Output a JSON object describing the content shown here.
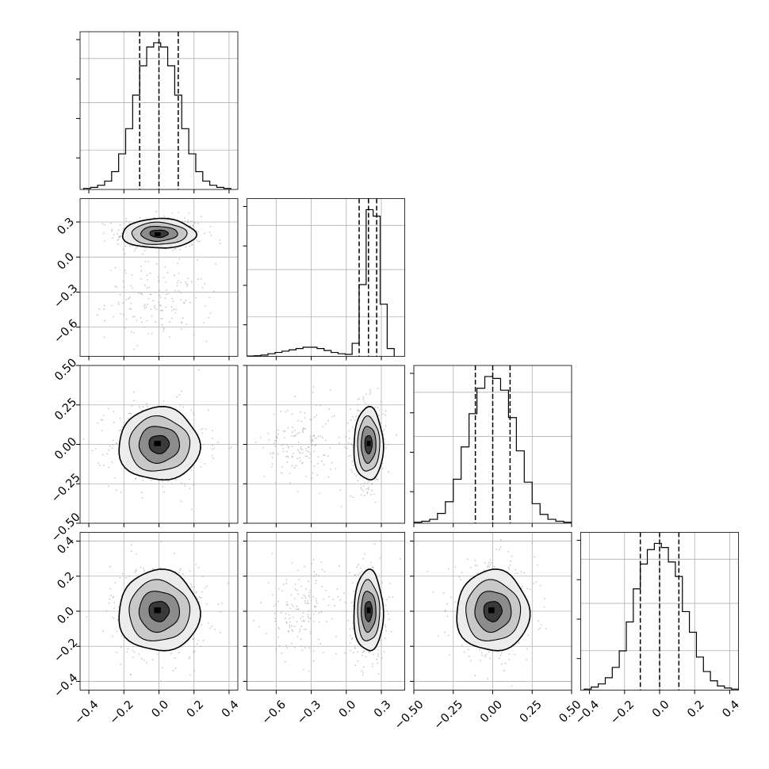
{
  "chart_data": {
    "type": "corner",
    "n_params": 4,
    "axis_ranges": [
      [
        -0.45,
        0.45
      ],
      [
        -0.85,
        0.5
      ],
      [
        -0.5,
        0.5
      ],
      [
        -0.45,
        0.45
      ]
    ],
    "ticks": [
      [
        "−0.4",
        "−0.2",
        "0.0",
        "0.2",
        "0.4"
      ],
      [
        "−0.6",
        "−0.3",
        "0.0",
        "0.3"
      ],
      [
        "−0.50",
        "−0.25",
        "0.00",
        "0.25",
        "0.50"
      ],
      [
        "−0.4",
        "−0.2",
        "0.0",
        "0.2",
        "0.4"
      ]
    ],
    "tick_values": [
      [
        -0.4,
        -0.2,
        0.0,
        0.2,
        0.4
      ],
      [
        -0.6,
        -0.3,
        0.0,
        0.3
      ],
      [
        -0.5,
        -0.25,
        0.0,
        0.25,
        0.5
      ],
      [
        -0.4,
        -0.2,
        0.0,
        0.2,
        0.4
      ]
    ],
    "histograms": [
      {
        "param": 0,
        "bin_edges": [
          -0.43,
          -0.39,
          -0.35,
          -0.31,
          -0.27,
          -0.23,
          -0.19,
          -0.15,
          -0.11,
          -0.07,
          -0.03,
          0.01,
          0.05,
          0.09,
          0.13,
          0.17,
          0.21,
          0.25,
          0.29,
          0.33,
          0.37,
          0.41
        ],
        "counts": [
          1,
          2,
          4,
          8,
          17,
          34,
          58,
          90,
          118,
          136,
          140,
          136,
          118,
          90,
          58,
          34,
          17,
          8,
          4,
          2,
          1
        ],
        "quantiles": [
          -0.11,
          0.0,
          0.11
        ]
      },
      {
        "param": 1,
        "bin_edges": [
          -0.85,
          -0.79,
          -0.73,
          -0.67,
          -0.61,
          -0.55,
          -0.49,
          -0.43,
          -0.37,
          -0.31,
          -0.25,
          -0.19,
          -0.13,
          -0.07,
          -0.01,
          0.05,
          0.11,
          0.17,
          0.23,
          0.29,
          0.35,
          0.41
        ],
        "counts": [
          0.5,
          1,
          2,
          4,
          6,
          8,
          10,
          12,
          14,
          14,
          12,
          9,
          6,
          4,
          3,
          20,
          110,
          225,
          215,
          80,
          12
        ],
        "quantiles": [
          0.11,
          0.19,
          0.26
        ]
      },
      {
        "param": 2,
        "bin_edges": [
          -0.5,
          -0.45,
          -0.4,
          -0.35,
          -0.3,
          -0.25,
          -0.2,
          -0.15,
          -0.1,
          -0.05,
          0.0,
          0.05,
          0.1,
          0.15,
          0.2,
          0.25,
          0.3,
          0.35,
          0.4,
          0.45,
          0.5
        ],
        "counts": [
          1,
          2,
          4,
          10,
          22,
          45,
          78,
          112,
          138,
          150,
          148,
          136,
          108,
          74,
          42,
          20,
          9,
          4,
          2,
          1
        ],
        "quantiles": [
          -0.11,
          0.0,
          0.11
        ]
      },
      {
        "param": 3,
        "bin_edges": [
          -0.43,
          -0.39,
          -0.35,
          -0.31,
          -0.27,
          -0.23,
          -0.19,
          -0.15,
          -0.11,
          -0.07,
          -0.03,
          0.01,
          0.05,
          0.09,
          0.13,
          0.17,
          0.21,
          0.25,
          0.29,
          0.33,
          0.37,
          0.41,
          0.45
        ],
        "counts": [
          1,
          3,
          6,
          12,
          22,
          38,
          66,
          98,
          122,
          136,
          142,
          138,
          124,
          110,
          76,
          56,
          32,
          18,
          9,
          4,
          2,
          1
        ],
        "quantiles": [
          -0.11,
          0.0,
          0.11
        ]
      }
    ],
    "joint_2d": [
      {
        "x_param": 0,
        "y_param": 1,
        "x_center": 0.0,
        "x_sigma": 0.1,
        "y_center": 0.2,
        "y_sigma": 0.06,
        "mode_2": {
          "x_center": 0.0,
          "x_sigma": 0.12,
          "y_center": -0.38,
          "y_sigma": 0.13
        }
      },
      {
        "x_param": 0,
        "y_param": 2,
        "x_center": 0.0,
        "x_sigma": 0.11,
        "y_center": 0.0,
        "y_sigma": 0.11
      },
      {
        "x_param": 1,
        "y_param": 2,
        "x_center": 0.19,
        "x_sigma": 0.06,
        "y_center": 0.0,
        "y_sigma": 0.11,
        "mode_2": {
          "x_center": -0.38,
          "x_sigma": 0.13,
          "y_center": 0.0,
          "y_sigma": 0.11
        }
      },
      {
        "x_param": 0,
        "y_param": 3,
        "x_center": 0.0,
        "x_sigma": 0.11,
        "y_center": 0.0,
        "y_sigma": 0.11
      },
      {
        "x_param": 1,
        "y_param": 3,
        "x_center": 0.19,
        "x_sigma": 0.06,
        "y_center": 0.0,
        "y_sigma": 0.11,
        "mode_2": {
          "x_center": -0.38,
          "x_sigma": 0.13,
          "y_center": 0.0,
          "y_sigma": 0.11
        }
      },
      {
        "x_param": 2,
        "y_param": 3,
        "x_center": 0.0,
        "x_sigma": 0.11,
        "y_center": 0.0,
        "y_sigma": 0.11
      }
    ],
    "contour_levels_sigma": [
      0.5,
      1.0,
      1.5,
      2.0
    ],
    "grid": true,
    "colors": {
      "line": "#000000",
      "grid": "#b0b0b0",
      "points": "#9a9a9a"
    }
  }
}
